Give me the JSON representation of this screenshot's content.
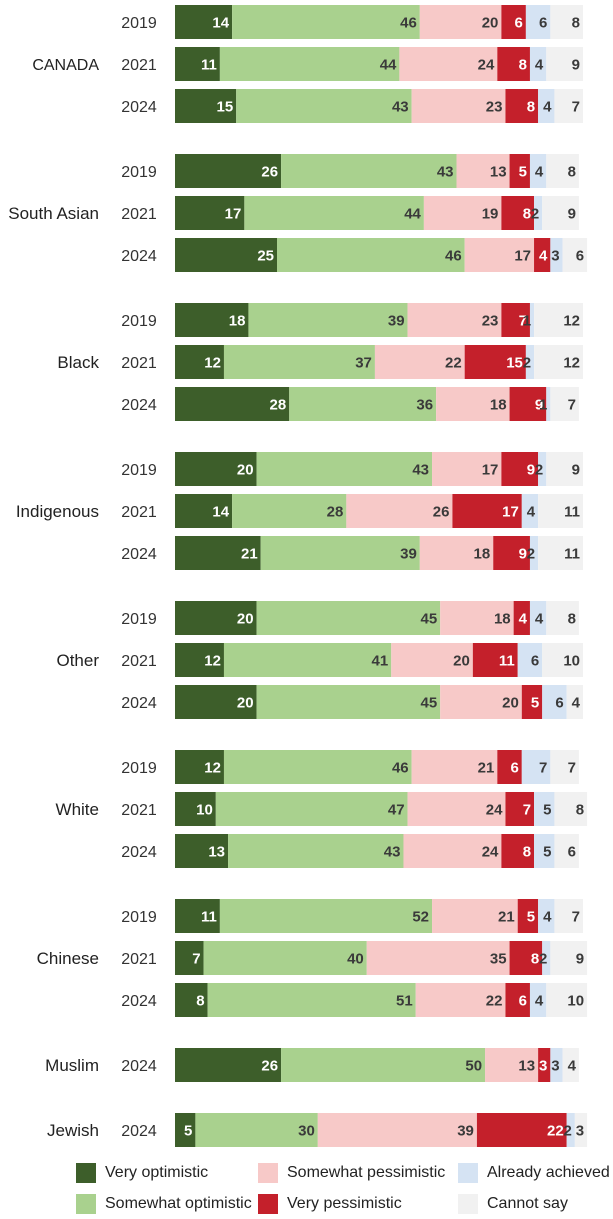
{
  "chart_data": {
    "type": "bar",
    "stacked": true,
    "orientation": "horizontal",
    "xlim": [
      0,
      100
    ],
    "series": [
      {
        "name": "Very optimistic",
        "color": "#3d5e2a",
        "label_color": "#ffffff"
      },
      {
        "name": "Somewhat optimistic",
        "color": "#a9d18e",
        "label_color": "#3a3a3a"
      },
      {
        "name": "Somewhat pessimistic",
        "color": "#f7c9c8",
        "label_color": "#3a3a3a"
      },
      {
        "name": "Very pessimistic",
        "color": "#c4202b",
        "label_color": "#ffffff"
      },
      {
        "name": "Already achieved",
        "color": "#d5e3f3",
        "label_color": "#3a3a3a"
      },
      {
        "name": "Cannot say",
        "color": "#f1f1f1",
        "label_color": "#3a3a3a"
      }
    ],
    "groups": [
      {
        "label": "CANADA",
        "rows": [
          {
            "year": "2019",
            "values": [
              14,
              46,
              20,
              6,
              6,
              8
            ]
          },
          {
            "year": "2021",
            "values": [
              11,
              44,
              24,
              8,
              4,
              9
            ]
          },
          {
            "year": "2024",
            "values": [
              15,
              43,
              23,
              8,
              4,
              7
            ]
          }
        ]
      },
      {
        "label": "South Asian",
        "rows": [
          {
            "year": "2019",
            "values": [
              26,
              43,
              13,
              5,
              4,
              8
            ]
          },
          {
            "year": "2021",
            "values": [
              17,
              44,
              19,
              8,
              2,
              9
            ]
          },
          {
            "year": "2024",
            "values": [
              25,
              46,
              17,
              4,
              3,
              6
            ]
          }
        ]
      },
      {
        "label": "Black",
        "rows": [
          {
            "year": "2019",
            "values": [
              18,
              39,
              23,
              7,
              1,
              12
            ]
          },
          {
            "year": "2021",
            "values": [
              12,
              37,
              22,
              15,
              2,
              12
            ]
          },
          {
            "year": "2024",
            "values": [
              28,
              36,
              18,
              9,
              1,
              7
            ]
          }
        ]
      },
      {
        "label": "Indigenous",
        "rows": [
          {
            "year": "2019",
            "values": [
              20,
              43,
              17,
              9,
              2,
              9
            ]
          },
          {
            "year": "2021",
            "values": [
              14,
              28,
              26,
              17,
              4,
              11
            ]
          },
          {
            "year": "2024",
            "values": [
              21,
              39,
              18,
              9,
              2,
              11
            ]
          }
        ]
      },
      {
        "label": "Other",
        "rows": [
          {
            "year": "2019",
            "values": [
              20,
              45,
              18,
              4,
              4,
              8
            ]
          },
          {
            "year": "2021",
            "values": [
              12,
              41,
              20,
              11,
              6,
              10
            ]
          },
          {
            "year": "2024",
            "values": [
              20,
              45,
              20,
              5,
              6,
              4
            ]
          }
        ]
      },
      {
        "label": "White",
        "rows": [
          {
            "year": "2019",
            "values": [
              12,
              46,
              21,
              6,
              7,
              7
            ]
          },
          {
            "year": "2021",
            "values": [
              10,
              47,
              24,
              7,
              5,
              8
            ]
          },
          {
            "year": "2024",
            "values": [
              13,
              43,
              24,
              8,
              5,
              6
            ]
          }
        ]
      },
      {
        "label": "Chinese",
        "rows": [
          {
            "year": "2019",
            "values": [
              11,
              52,
              21,
              5,
              4,
              7
            ]
          },
          {
            "year": "2021",
            "values": [
              7,
              40,
              35,
              8,
              2,
              9
            ]
          },
          {
            "year": "2024",
            "values": [
              8,
              51,
              22,
              6,
              4,
              10
            ]
          }
        ]
      },
      {
        "label": "Muslim",
        "rows": [
          {
            "year": "2024",
            "values": [
              26,
              50,
              13,
              3,
              3,
              4
            ]
          }
        ]
      },
      {
        "label": "Jewish",
        "rows": [
          {
            "year": "2024",
            "values": [
              5,
              30,
              39,
              22,
              2,
              3
            ]
          }
        ]
      }
    ]
  },
  "legend": {
    "items": [
      {
        "label": "Very optimistic",
        "color": "#3d5e2a"
      },
      {
        "label": "Somewhat optimistic",
        "color": "#a9d18e"
      },
      {
        "label": "Somewhat pessimistic",
        "color": "#f7c9c8"
      },
      {
        "label": "Very pessimistic",
        "color": "#c4202b"
      },
      {
        "label": "Already achieved",
        "color": "#d5e3f3"
      },
      {
        "label": "Cannot say",
        "color": "#f1f1f1"
      }
    ]
  }
}
